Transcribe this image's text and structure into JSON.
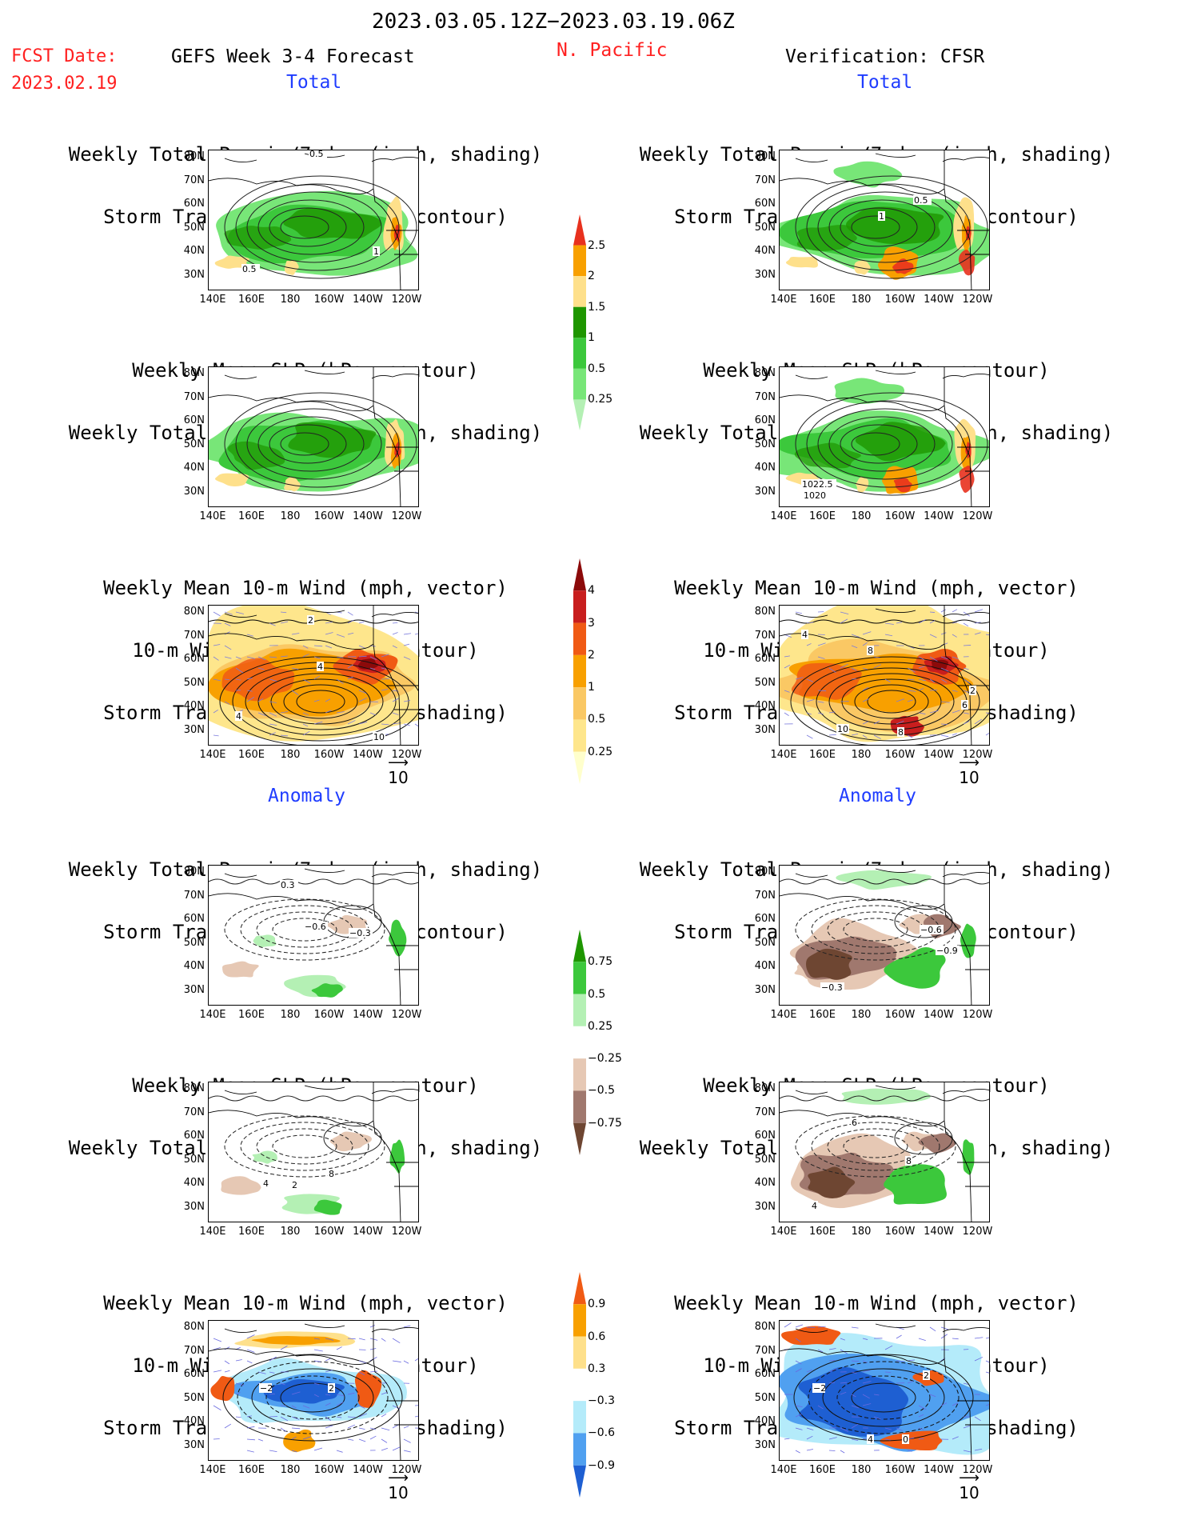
{
  "header": {
    "period": "2023.03.05.12Z−2023.03.19.06Z",
    "fcst_label": "FCST Date:",
    "fcst_date": "2023.02.19",
    "model": "GEFS Week 3-4 Forecast",
    "region": "N. Pacific",
    "verification": "Verification: CFSR"
  },
  "sections": {
    "total": "Total",
    "anomaly": "Anomaly"
  },
  "titles": {
    "precip_storm": [
      "Weekly Total Precip/7-day (inch, shading)",
      "Storm Track Density/7-day (contour)"
    ],
    "slp_precip": [
      "Weekly Mean SLP (hPa, contour)",
      "Weekly Total Precip/7-day (inch, shading)"
    ],
    "wind_storm": [
      "Weekly Mean 10-m Wind (mph, vector)",
      "10-m Wind Speed (mph, contour)",
      "Storm Track Density/7-day (shading)"
    ]
  },
  "axes": {
    "lat_labels": [
      "80N",
      "70N",
      "60N",
      "50N",
      "40N",
      "30N"
    ],
    "lon_labels": [
      "140E",
      "160E",
      "180",
      "160W",
      "140W",
      "120W"
    ]
  },
  "vector_ref": "10",
  "colorbars": {
    "precip_total": {
      "labels": [
        "2.5",
        "2",
        "1.5",
        "1",
        "0.5",
        "0.25"
      ],
      "colors": [
        "#e8311e",
        "#f8a000",
        "#fee08b",
        "#1e9600",
        "#3cc83c",
        "#78e678",
        "#b4f0b4"
      ]
    },
    "storm_total": {
      "labels": [
        "4",
        "3",
        "2",
        "1",
        "0.5",
        "0.25"
      ],
      "colors": [
        "#8c0a0a",
        "#c81e1e",
        "#f05a14",
        "#f8a000",
        "#fac864",
        "#fee68c",
        "#ffffcc"
      ]
    },
    "precip_anom": {
      "labels": [
        "0.75",
        "0.5",
        "0.25",
        "−0.25",
        "−0.5",
        "−0.75"
      ],
      "colors": [
        "#1e9600",
        "#3cc83c",
        "#b4f0b4",
        "#ffffff",
        "#e6c8b4",
        "#a0786e",
        "#6e4632"
      ]
    },
    "storm_anom": {
      "labels": [
        "0.9",
        "0.6",
        "0.3",
        "−0.3",
        "−0.6",
        "−0.9"
      ],
      "colors": [
        "#f05a14",
        "#f8a000",
        "#fee08b",
        "#ffffff",
        "#b4ebfa",
        "#50a0f0",
        "#1e5fd2"
      ]
    }
  },
  "map_labels": {
    "l1": [
      "0.5",
      "1",
      "0.5"
    ],
    "r1": [
      "0.5",
      "1"
    ],
    "r2": [
      "1022.5",
      "1020"
    ],
    "l3": [
      "2",
      "4",
      "4",
      "10"
    ],
    "r3": [
      "4",
      "8",
      "6",
      "10",
      "8",
      "2"
    ],
    "l4": [
      "0.3",
      "−0.6",
      "−0.3"
    ],
    "r4": [
      "−0.6",
      "−0.9",
      "−0.3"
    ],
    "l5": [
      "4",
      "2",
      "8"
    ],
    "r5": [
      "6",
      "8",
      "4"
    ],
    "l6": [
      "−2",
      "2"
    ],
    "r6": [
      "−2",
      "2",
      "4",
      "0"
    ]
  }
}
